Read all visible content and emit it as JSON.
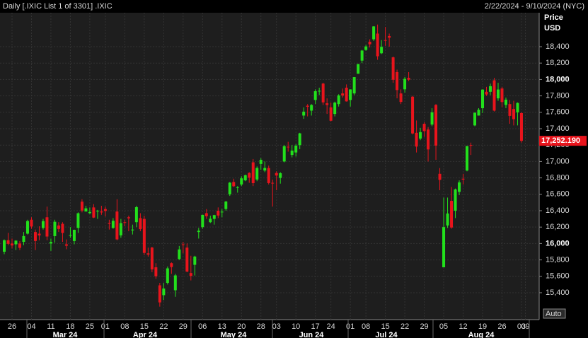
{
  "chart_data": {
    "type": "candlestick",
    "title": "Daily [.IXIC List 1 of 3301] .IXIC",
    "date_range": "2/22/2024 - 9/10/2024 (NYC)",
    "y_label": "Price",
    "y_unit": "USD",
    "scale_mode": "Auto",
    "up_color": "#22e01c",
    "down_color": "#e8141c",
    "grid": true,
    "ylim": [
      15072,
      18814
    ],
    "yticks": [
      {
        "value": 15400,
        "label": "15,400"
      },
      {
        "value": 15600,
        "label": "15,600"
      },
      {
        "value": 15800,
        "label": "15,800"
      },
      {
        "value": 16000,
        "label": "16,000"
      },
      {
        "value": 16200,
        "label": "16,200"
      },
      {
        "value": 16400,
        "label": "16,400"
      },
      {
        "value": 16600,
        "label": "16,600"
      },
      {
        "value": 16800,
        "label": "16,800"
      },
      {
        "value": 17000,
        "label": "17,000"
      },
      {
        "value": 17200,
        "label": "17,200"
      },
      {
        "value": 17400,
        "label": "17,400"
      },
      {
        "value": 17600,
        "label": "17,600"
      },
      {
        "value": 17800,
        "label": "17,800"
      },
      {
        "value": 18000,
        "label": "18,000"
      },
      {
        "value": 18200,
        "label": "18,200"
      },
      {
        "value": 18400,
        "label": "18,400"
      }
    ],
    "bold_yticks": [
      16000,
      18000
    ],
    "last_value": {
      "value": 17252.19,
      "label": "17,252.190"
    },
    "months": [
      "Mar 24",
      "Apr 24",
      "May 24",
      "Jun 24",
      "Jul 24",
      "Aug 24"
    ],
    "categories": [
      null,
      null,
      "26",
      null,
      null,
      null,
      null,
      "04",
      null,
      null,
      null,
      null,
      "11",
      null,
      null,
      null,
      null,
      "18",
      null,
      null,
      null,
      null,
      "25",
      null,
      null,
      null,
      "01",
      null,
      null,
      null,
      null,
      "08",
      null,
      null,
      null,
      null,
      "15",
      null,
      null,
      null,
      null,
      "22",
      null,
      null,
      null,
      null,
      "29",
      null,
      null,
      null,
      null,
      "06",
      null,
      null,
      null,
      null,
      "13",
      null,
      null,
      null,
      null,
      "20",
      null,
      null,
      null,
      null,
      "28",
      null,
      null,
      null,
      "03",
      null,
      null,
      null,
      null,
      "10",
      null,
      null,
      null,
      null,
      "17",
      null,
      null,
      null,
      "24",
      null,
      null,
      null,
      null,
      "01",
      null,
      null,
      null,
      "08",
      null,
      null,
      null,
      null,
      "15",
      null,
      null,
      null,
      null,
      "22",
      null,
      null,
      null,
      null,
      "29",
      null,
      null,
      null,
      null,
      "05",
      null,
      null,
      null,
      null,
      "12",
      null,
      null,
      null,
      null,
      "19",
      null,
      null,
      null,
      null,
      "26",
      null,
      null,
      null,
      null,
      "03",
      "09"
    ],
    "open": [
      15900,
      16040,
      16000,
      15990,
      16000,
      16020,
      16120,
      16290,
      16140,
      16120,
      16190,
      16320,
      16000,
      16090,
      16220,
      16240,
      15990,
      16100,
      16030,
      16190,
      16510,
      16390,
      16370,
      16440,
      16400,
      16390,
      16420,
      16250,
      16190,
      16390,
      16100,
      16260,
      16320,
      16160,
      16260,
      16310,
      16300,
      15880,
      15950,
      15710,
      15490,
      15370,
      15520,
      15760,
      15430,
      15810,
      15990,
      15950,
      15640,
      15740,
      16140,
      16200,
      16370,
      16260,
      16300,
      16400,
      16380,
      16420,
      16600,
      16750,
      16680,
      16720,
      16770,
      16860,
      16990,
      16780,
      16970,
      16890,
      16920,
      16740,
      16860,
      16800,
      17000,
      17180,
      17080,
      17110,
      17200,
      17560,
      17680,
      17620,
      17750,
      17860,
      17950,
      17710,
      17660,
      17580,
      17700,
      17830,
      17900,
      17750,
      17830,
      18070,
      18230,
      18360,
      18460,
      18490,
      18560,
      18320,
      18480,
      18530,
      18270,
      18090,
      17830,
      17880,
      18020,
      17790,
      17350,
      17280,
      17460,
      17390,
      17450,
      17690,
      16850,
      15710,
      16220,
      16520,
      16400,
      16630,
      16790,
      16890,
      17200,
      17440,
      17560,
      17650,
      17850,
      17850,
      17990,
      17770,
      17890,
      17690,
      17700,
      17640,
      17600,
      17590,
      null
    ],
    "high": [
      16050,
      16130,
      16060,
      16040,
      16030,
      16140,
      16290,
      16320,
      16170,
      16210,
      16300,
      16450,
      16060,
      16290,
      16260,
      16260,
      16050,
      16200,
      16170,
      16380,
      16540,
      16460,
      16440,
      16480,
      16410,
      16460,
      16450,
      16290,
      16310,
      16540,
      16300,
      16290,
      16340,
      16230,
      16460,
      16370,
      16340,
      15950,
      15960,
      15760,
      15520,
      15520,
      15720,
      15770,
      15630,
      15970,
      16020,
      16000,
      15850,
      15850,
      16190,
      16350,
      16420,
      16340,
      16350,
      16440,
      16420,
      16520,
      16750,
      16790,
      16700,
      16820,
      16840,
      16870,
      17030,
      16940,
      17040,
      17000,
      16950,
      16780,
      16880,
      16870,
      17200,
      17240,
      17200,
      17210,
      17350,
      17660,
      17700,
      17700,
      17880,
      17900,
      17960,
      17770,
      17720,
      17730,
      17820,
      17890,
      17940,
      17880,
      18030,
      18190,
      18360,
      18420,
      18490,
      18650,
      18670,
      18480,
      18640,
      18560,
      18280,
      18120,
      17880,
      18030,
      18090,
      17800,
      17500,
      17410,
      17480,
      17420,
      17650,
      17700,
      16920,
      16560,
      16560,
      16690,
      16670,
      16770,
      16850,
      17190,
      17230,
      17600,
      17650,
      17880,
      17910,
      17950,
      18020,
      17960,
      17910,
      17780,
      17750,
      17740,
      17720,
      17600,
      null
    ],
    "low": [
      15870,
      15980,
      15940,
      15920,
      15920,
      15980,
      16110,
      16180,
      15920,
      16040,
      16170,
      16040,
      15910,
      16010,
      16140,
      16020,
      15930,
      16070,
      15990,
      16130,
      16380,
      16390,
      16360,
      16310,
      16300,
      16350,
      16330,
      16170,
      16180,
      16040,
      16070,
      16210,
      16150,
      16110,
      16200,
      16150,
      15860,
      15840,
      15650,
      15570,
      15230,
      15310,
      15500,
      15630,
      15350,
      15800,
      15880,
      15650,
      15550,
      15610,
      16060,
      16180,
      16300,
      16250,
      16230,
      16310,
      16320,
      16400,
      16580,
      16690,
      16620,
      16700,
      16760,
      16740,
      16700,
      16760,
      16900,
      16870,
      16720,
      16450,
      16650,
      16730,
      16990,
      17120,
      17050,
      17060,
      17150,
      17520,
      17550,
      17560,
      17700,
      17810,
      17690,
      17580,
      17490,
      17550,
      17670,
      17780,
      17730,
      17670,
      17810,
      18070,
      18200,
      18350,
      18390,
      18470,
      18240,
      18310,
      18410,
      18400,
      17960,
      17770,
      17700,
      17840,
      17980,
      17330,
      17110,
      17260,
      17300,
      17000,
      17430,
      17020,
      16650,
      15710,
      16190,
      16180,
      16310,
      16590,
      16720,
      16880,
      17080,
      17430,
      17560,
      17590,
      17800,
      17810,
      17610,
      17740,
      17660,
      17650,
      17460,
      17440,
      17440,
      17230,
      null
    ],
    "close": [
      16040,
      15996,
      15976,
      16035,
      15947,
      16091,
      16274,
      16207,
      16031,
      16099,
      16273,
      16085,
      16019,
      16265,
      16177,
      16129,
      15973,
      16103,
      16167,
      16369,
      16402,
      16429,
      16384,
      16316,
      16400,
      16379,
      16397,
      16240,
      16277,
      16050,
      16249,
      16253,
      16307,
      16170,
      16443,
      16175,
      15885,
      15865,
      15684,
      15601,
      15282,
      15451,
      15697,
      15713,
      15611,
      15928,
      15983,
      15658,
      15605,
      15841,
      16156,
      16349,
      16333,
      16302,
      16346,
      16341,
      16388,
      16511,
      16742,
      16698,
      16686,
      16795,
      16833,
      16802,
      16736,
      16921,
      17020,
      16921,
      16737,
      16735,
      16829,
      16857,
      17187,
      17173,
      17133,
      17193,
      17343,
      17608,
      17667,
      17689,
      17857,
      17862,
      17721,
      17689,
      17497,
      17718,
      17805,
      17805,
      17733,
      17879,
      18029,
      18188,
      18353,
      18403,
      18429,
      18647,
      18283,
      18398,
      18473,
      18509,
      17997,
      17871,
      17726,
      18008,
      17997,
      17342,
      17182,
      17358,
      17370,
      17147,
      17599,
      17194,
      16776,
      16200,
      16366,
      16195,
      16660,
      16745,
      16780,
      17188,
      17192,
      17594,
      17631,
      17877,
      17817,
      17918,
      17620,
      17878,
      17725,
      17754,
      17556,
      17516,
      17714,
      17252.19,
      null
    ]
  }
}
